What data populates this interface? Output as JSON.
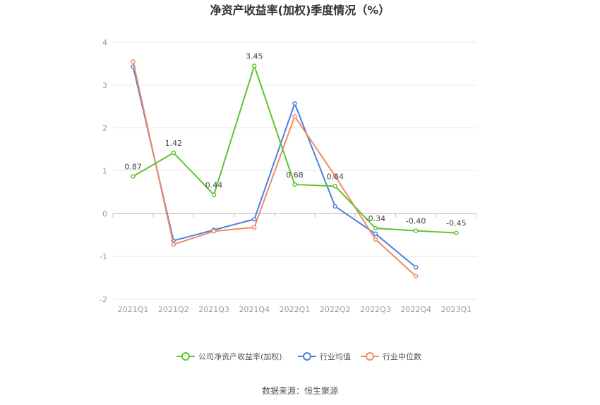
{
  "chart_data": {
    "type": "line",
    "title": "净资产收益率(加权)季度情况（%）",
    "categories": [
      "2021Q1",
      "2021Q2",
      "2021Q3",
      "2021Q4",
      "2022Q1",
      "2022Q2",
      "2022Q3",
      "2022Q4",
      "2023Q1"
    ],
    "ylim": [
      -2,
      4
    ],
    "yticks": [
      -2,
      -1,
      0,
      1,
      2,
      3,
      4
    ],
    "grid": true,
    "legend_position": "bottom",
    "series": [
      {
        "name": "公司净资产收益率(加权)",
        "color": "#5cc531",
        "values": [
          0.87,
          1.42,
          0.44,
          3.45,
          0.68,
          0.64,
          -0.34,
          -0.4,
          -0.45
        ],
        "labels": [
          "0.87",
          "1.42",
          "0.44",
          "3.45",
          "0.68",
          "0.64",
          "-0.34",
          "-0.40",
          "-0.45"
        ]
      },
      {
        "name": "行业均值",
        "color": "#4a7fe0",
        "values": [
          3.43,
          -0.63,
          -0.38,
          -0.13,
          2.57,
          0.17,
          -0.47,
          -1.25,
          null
        ]
      },
      {
        "name": "行业中位数",
        "color": "#f28a63",
        "values": [
          3.55,
          -0.72,
          -0.41,
          -0.32,
          2.27,
          0.88,
          -0.6,
          -1.46,
          null
        ]
      }
    ]
  },
  "source": "数据来源：恒生聚源"
}
